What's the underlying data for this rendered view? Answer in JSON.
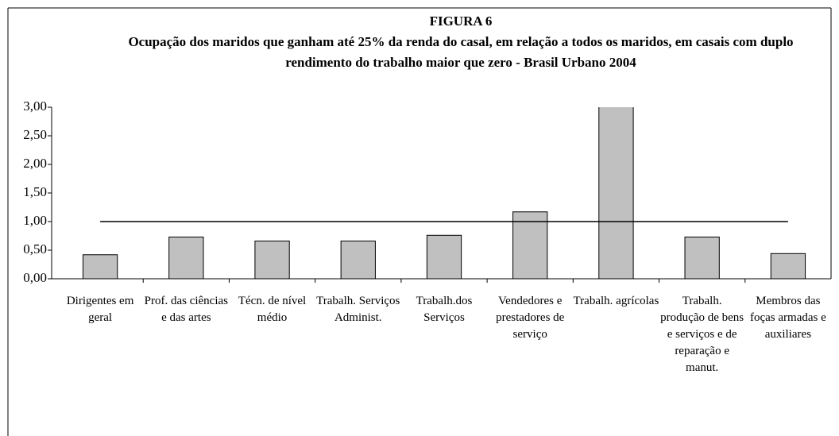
{
  "chart_data": {
    "type": "bar",
    "title": "FIGURA 6",
    "subtitle": "Ocupação dos maridos que ganham até 25% da renda do casal, em relação a todos os maridos, em casais com duplo rendimento do trabalho maior que zero - Brasil Urbano 2004",
    "categories": [
      "Dirigentes em geral",
      "Prof. das ciências e das artes",
      "Técn. de nível médio",
      "Trabalh. Serviços Administ.",
      "Trabalh.dos Serviços",
      "Vendedores e prestadores de serviço",
      "Trabalh. agrícolas",
      "Trabalh. produção de bens e serviços e de reparação e manut.",
      "Membros das foças armadas e auxiliares"
    ],
    "values": [
      0.42,
      0.73,
      0.66,
      0.66,
      0.76,
      1.17,
      3.2,
      0.73,
      0.44
    ],
    "color": "#c0c0c0",
    "reference_value": 1,
    "ylim": [
      0,
      3
    ],
    "yticks": [
      {
        "value": 0,
        "label": "0,00"
      },
      {
        "value": 0.5,
        "label": "0,50"
      },
      {
        "value": 1,
        "label": "1,00"
      },
      {
        "value": 1.5,
        "label": "1,50"
      },
      {
        "value": 2,
        "label": "2,00"
      },
      {
        "value": 2.5,
        "label": "2,50"
      },
      {
        "value": 3,
        "label": "3,00"
      }
    ]
  }
}
